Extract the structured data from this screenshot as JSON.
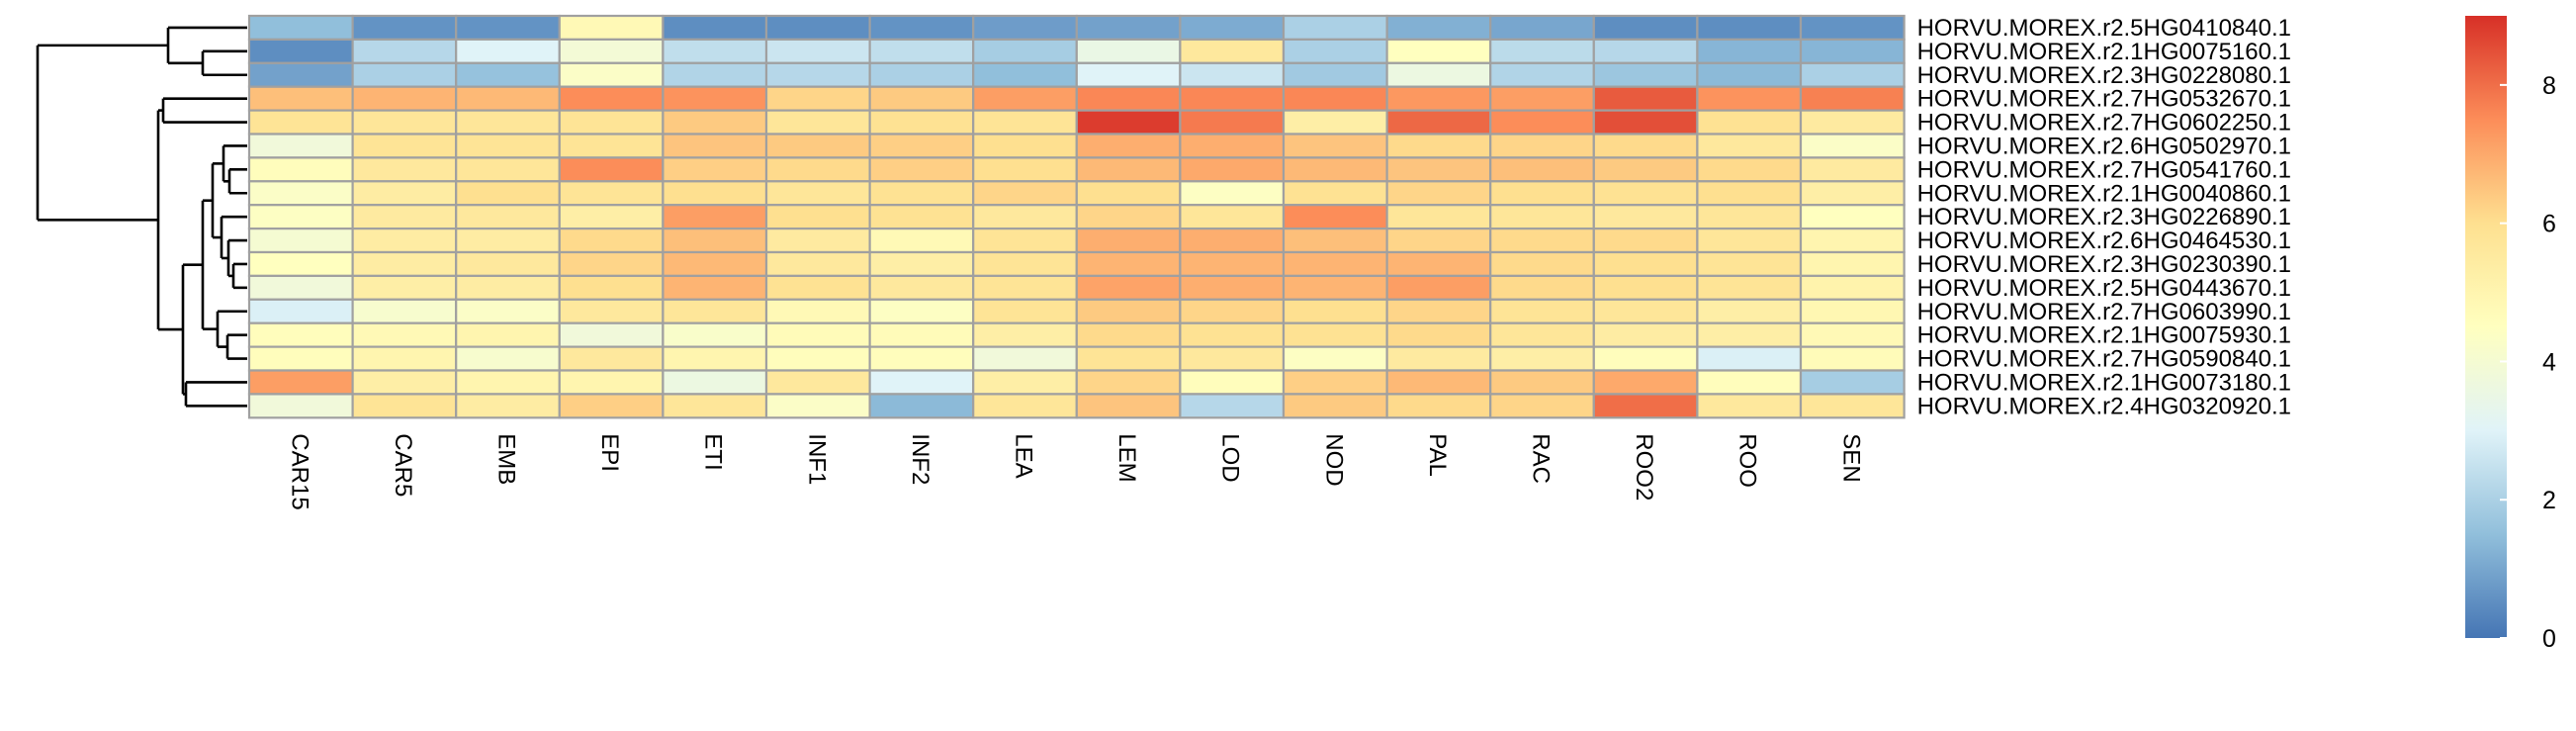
{
  "chart_data": {
    "type": "heatmap",
    "title": "",
    "xlabel": "",
    "ylabel": "",
    "columns": [
      "CAR15",
      "CAR5",
      "EMB",
      "EPI",
      "ETI",
      "INF1",
      "INF2",
      "LEA",
      "LEM",
      "LOD",
      "NOD",
      "PAL",
      "RAC",
      "ROO2",
      "ROO",
      "SEN"
    ],
    "rows": [
      "HORVU.MOREX.r2.5HG0410840.1",
      "HORVU.MOREX.r2.1HG0075160.1",
      "HORVU.MOREX.r2.3HG0228080.1",
      "HORVU.MOREX.r2.7HG0532670.1",
      "HORVU.MOREX.r2.7HG0602250.1",
      "HORVU.MOREX.r2.6HG0502970.1",
      "HORVU.MOREX.r2.7HG0541760.1",
      "HORVU.MOREX.r2.1HG0040860.1",
      "HORVU.MOREX.r2.3HG0226890.1",
      "HORVU.MOREX.r2.6HG0464530.1",
      "HORVU.MOREX.r2.3HG0230390.1",
      "HORVU.MOREX.r2.5HG0443670.1",
      "HORVU.MOREX.r2.7HG0603990.1",
      "HORVU.MOREX.r2.1HG0075930.1",
      "HORVU.MOREX.r2.7HG0590840.1",
      "HORVU.MOREX.r2.1HG0073180.1",
      "HORVU.MOREX.r2.4HG0320920.1"
    ],
    "values": [
      [
        1.5,
        0.6,
        0.6,
        4.8,
        0.5,
        0.5,
        0.6,
        0.8,
        0.9,
        1.1,
        2.0,
        1.2,
        1.0,
        0.5,
        0.5,
        0.6
      ],
      [
        0.5,
        2.2,
        3.0,
        3.9,
        2.4,
        2.6,
        2.4,
        1.9,
        3.5,
        5.6,
        2.0,
        4.5,
        2.3,
        2.2,
        1.3,
        1.3
      ],
      [
        0.9,
        2.0,
        1.6,
        4.3,
        2.1,
        2.2,
        2.0,
        1.5,
        3.0,
        2.6,
        1.8,
        3.6,
        2.1,
        1.7,
        1.4,
        2.0
      ],
      [
        6.6,
        6.8,
        6.7,
        7.5,
        7.4,
        6.2,
        6.4,
        7.2,
        7.6,
        7.6,
        7.6,
        7.3,
        7.2,
        8.3,
        7.4,
        7.7
      ],
      [
        5.8,
        5.7,
        5.7,
        5.8,
        6.4,
        5.7,
        5.9,
        5.8,
        8.8,
        7.8,
        5.3,
        8.1,
        7.5,
        8.5,
        5.9,
        5.5
      ],
      [
        3.8,
        5.8,
        5.8,
        5.8,
        6.5,
        6.4,
        6.3,
        6.0,
        6.9,
        6.9,
        6.5,
        6.1,
        6.2,
        6.1,
        5.6,
        4.3
      ],
      [
        4.6,
        5.6,
        5.7,
        7.5,
        6.3,
        6.1,
        6.3,
        6.0,
        6.7,
        7.0,
        6.7,
        6.5,
        6.6,
        6.4,
        6.1,
        5.5
      ],
      [
        4.3,
        5.4,
        6.0,
        5.8,
        6.0,
        5.7,
        5.9,
        6.2,
        6.0,
        4.4,
        5.9,
        6.2,
        6.0,
        5.9,
        6.0,
        5.3
      ],
      [
        4.4,
        5.5,
        5.6,
        5.3,
        7.2,
        6.0,
        5.9,
        5.6,
        6.2,
        5.7,
        7.5,
        5.7,
        5.7,
        5.6,
        5.7,
        4.5
      ],
      [
        4.0,
        5.4,
        5.4,
        6.1,
        6.6,
        5.5,
        4.8,
        5.8,
        6.9,
        6.9,
        6.6,
        6.2,
        6.1,
        6.1,
        5.7,
        5.0
      ],
      [
        4.5,
        5.4,
        5.6,
        6.2,
        6.7,
        5.6,
        5.3,
        5.8,
        6.8,
        6.8,
        6.8,
        6.8,
        6.1,
        6.0,
        5.8,
        5.0
      ],
      [
        3.8,
        5.3,
        5.4,
        6.0,
        6.8,
        5.9,
        5.6,
        5.8,
        7.1,
        6.9,
        6.8,
        7.2,
        6.1,
        6.0,
        5.8,
        5.1
      ],
      [
        2.9,
        4.1,
        4.3,
        5.6,
        5.7,
        4.8,
        4.4,
        5.8,
        6.4,
        6.2,
        6.0,
        6.2,
        5.8,
        5.7,
        5.3,
        4.9
      ],
      [
        4.6,
        4.8,
        5.0,
        3.8,
        4.2,
        4.7,
        4.7,
        5.3,
        6.1,
        5.9,
        5.9,
        6.1,
        5.7,
        5.4,
        5.3,
        4.8
      ],
      [
        4.6,
        5.0,
        4.1,
        5.6,
        5.0,
        4.6,
        4.6,
        3.8,
        5.8,
        5.6,
        4.4,
        5.5,
        5.3,
        4.6,
        2.9,
        4.7
      ],
      [
        7.2,
        5.3,
        5.0,
        5.0,
        3.6,
        5.6,
        3.0,
        5.3,
        6.2,
        4.6,
        6.3,
        6.7,
        6.4,
        7.0,
        4.6,
        1.9
      ],
      [
        3.8,
        5.8,
        5.4,
        6.3,
        5.7,
        4.3,
        1.4,
        5.7,
        6.5,
        2.2,
        6.4,
        6.1,
        6.2,
        8.0,
        5.6,
        5.7
      ]
    ],
    "color_scale": {
      "min": 0,
      "max": 9,
      "stops": [
        "#4575B4",
        "#91BFDB",
        "#E0F3F8",
        "#FFFFBF",
        "#FEE090",
        "#FC8D59",
        "#D73027"
      ],
      "ticks": [
        0,
        2,
        4,
        6,
        8
      ]
    },
    "cell_border_color": "#A0A0A0",
    "row_dendrogram": true,
    "legend_position": "right"
  }
}
